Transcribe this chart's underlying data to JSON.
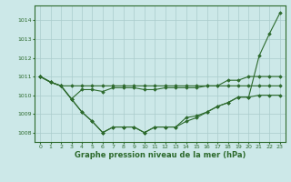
{
  "x": [
    0,
    1,
    2,
    3,
    4,
    5,
    6,
    7,
    8,
    9,
    10,
    11,
    12,
    13,
    14,
    15,
    16,
    17,
    18,
    19,
    20,
    21,
    22,
    23
  ],
  "series": [
    [
      1011.0,
      1010.7,
      1010.5,
      1009.8,
      1009.1,
      1008.6,
      1008.0,
      1008.3,
      1008.3,
      1008.3,
      1008.0,
      1008.3,
      1008.3,
      1008.3,
      1008.8,
      1008.9,
      1009.1,
      1009.4,
      1009.6,
      1009.9,
      1009.9,
      1012.1,
      1013.3,
      1014.4
    ],
    [
      1011.0,
      1010.7,
      1010.5,
      1010.5,
      1010.5,
      1010.5,
      1010.5,
      1010.5,
      1010.5,
      1010.5,
      1010.5,
      1010.5,
      1010.5,
      1010.5,
      1010.5,
      1010.5,
      1010.5,
      1010.5,
      1010.8,
      1010.8,
      1011.0,
      1011.0,
      1011.0,
      1011.0
    ],
    [
      1011.0,
      1010.7,
      1010.5,
      1009.8,
      1009.1,
      1008.6,
      1008.0,
      1008.3,
      1008.3,
      1008.3,
      1008.0,
      1008.3,
      1008.3,
      1008.3,
      1008.6,
      1008.8,
      1009.1,
      1009.4,
      1009.6,
      1009.9,
      1009.9,
      1010.0,
      1010.0,
      1010.0
    ],
    [
      1011.0,
      1010.7,
      1010.5,
      1009.8,
      1010.3,
      1010.3,
      1010.2,
      1010.4,
      1010.4,
      1010.4,
      1010.3,
      1010.3,
      1010.4,
      1010.4,
      1010.4,
      1010.4,
      1010.5,
      1010.5,
      1010.5,
      1010.5,
      1010.5,
      1010.5,
      1010.5,
      1010.5
    ]
  ],
  "line_color": "#2d6a2d",
  "bg_color": "#cce8e8",
  "grid_color": "#aacccc",
  "xlabel": "Graphe pression niveau de la mer (hPa)",
  "xlabel_color": "#2d6a2d",
  "ylabel_ticks": [
    1008,
    1009,
    1010,
    1011,
    1012,
    1013,
    1014
  ],
  "xtick_labels": [
    "0",
    "1",
    "2",
    "3",
    "4",
    "5",
    "6",
    "7",
    "8",
    "9",
    "10",
    "11",
    "12",
    "13",
    "14",
    "15",
    "16",
    "17",
    "18",
    "19",
    "20",
    "21",
    "22",
    "23"
  ],
  "ylim": [
    1007.5,
    1014.8
  ],
  "xlim": [
    -0.5,
    23.5
  ]
}
